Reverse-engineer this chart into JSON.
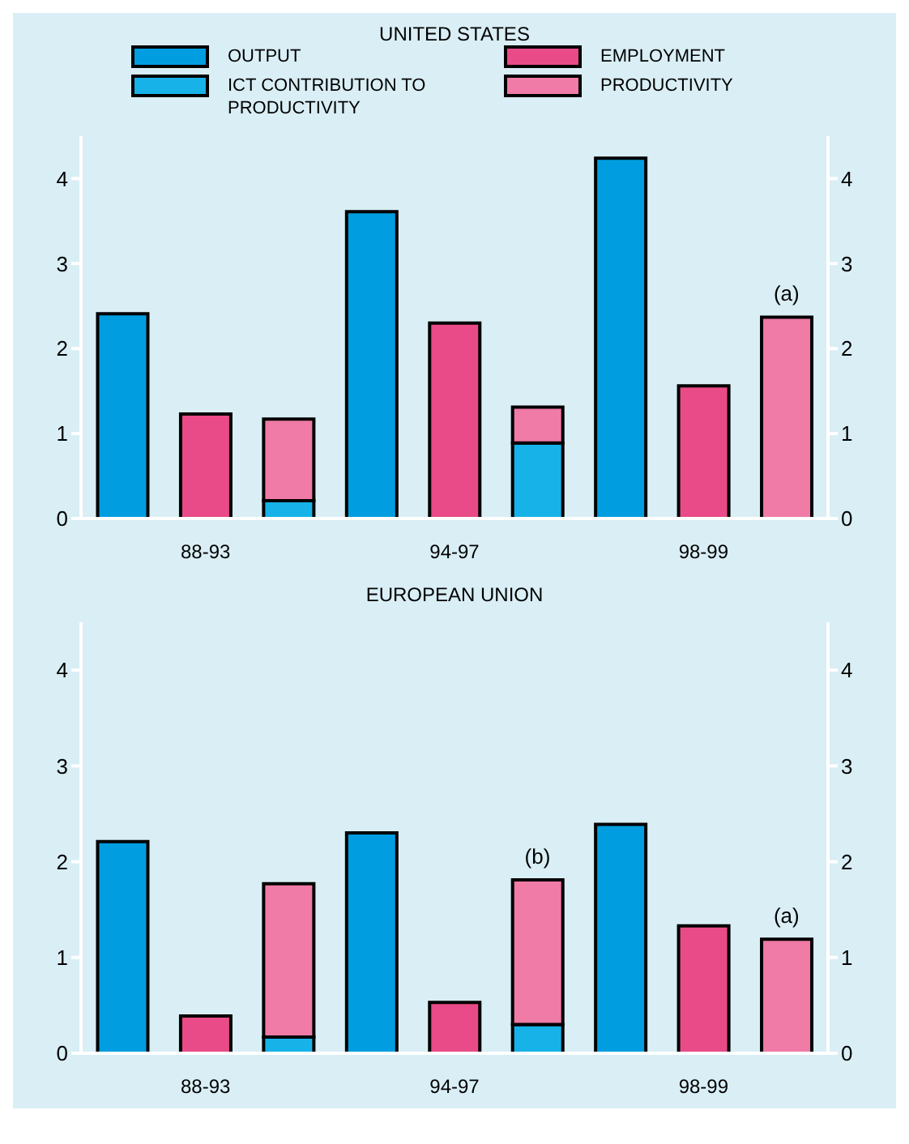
{
  "chart_data": [
    {
      "type": "bar",
      "title": "UNITED STATES",
      "categories": [
        null,
        "88-93",
        null,
        null,
        "94-97",
        null,
        null,
        "98-99",
        null
      ],
      "series": [
        {
          "name": "OUTPUT",
          "color": "#009ee0",
          "values": [
            2.41,
            null,
            null,
            3.61,
            null,
            null,
            4.24,
            null,
            null
          ]
        },
        {
          "name": "EMPLOYMENT",
          "color": "#e84b87",
          "values": [
            null,
            1.23,
            null,
            null,
            2.3,
            null,
            null,
            1.56,
            null
          ]
        },
        {
          "name": "ICT CONTRIBUTION TO PRODUCTIVITY",
          "color": "#17b3e8",
          "values": [
            null,
            null,
            0.21,
            null,
            null,
            0.89,
            null,
            null,
            null
          ]
        },
        {
          "name": "PRODUCTIVITY",
          "color": "#f07ba6",
          "values": [
            null,
            null,
            0.96,
            null,
            null,
            0.42,
            null,
            null,
            2.37
          ]
        }
      ],
      "stacked": true,
      "ylim": [
        0,
        4.5
      ],
      "yticks": [
        0,
        1,
        2,
        3,
        4
      ],
      "y2lim": [
        0,
        4.5
      ],
      "y2ticks": [
        0,
        1,
        2,
        3,
        4
      ],
      "legend": "top",
      "annotations": [
        {
          "text": "(a)",
          "y": 2.37
        }
      ]
    },
    {
      "type": "bar",
      "title": "EUROPEAN UNION",
      "categories": [
        null,
        "88-93",
        null,
        null,
        "94-97",
        null,
        null,
        "98-99",
        null
      ],
      "series": [
        {
          "color": "#009ee0",
          "values": [
            2.21,
            null,
            null,
            2.3,
            null,
            null,
            2.39,
            null,
            null
          ]
        },
        {
          "color": "#e84b87",
          "values": [
            null,
            0.39,
            null,
            null,
            0.53,
            null,
            null,
            1.33,
            null
          ]
        },
        {
          "color": "#17b3e8",
          "values": [
            null,
            null,
            0.17,
            null,
            null,
            0.3,
            null,
            null,
            null
          ]
        },
        {
          "color": "#f07ba6",
          "values": [
            null,
            null,
            1.6,
            null,
            null,
            1.51,
            null,
            null,
            1.19
          ]
        }
      ],
      "stacked": true,
      "ylim": [
        0,
        4.5
      ],
      "yticks": [
        0,
        1,
        2,
        3,
        4
      ],
      "y2lim": [
        0,
        4.5
      ],
      "y2ticks": [
        0,
        1,
        2,
        3,
        4
      ],
      "annotations": [
        {
          "text": "(b)",
          "y": 1.81
        },
        {
          "text": "(a)",
          "y": 1.19
        }
      ]
    }
  ]
}
